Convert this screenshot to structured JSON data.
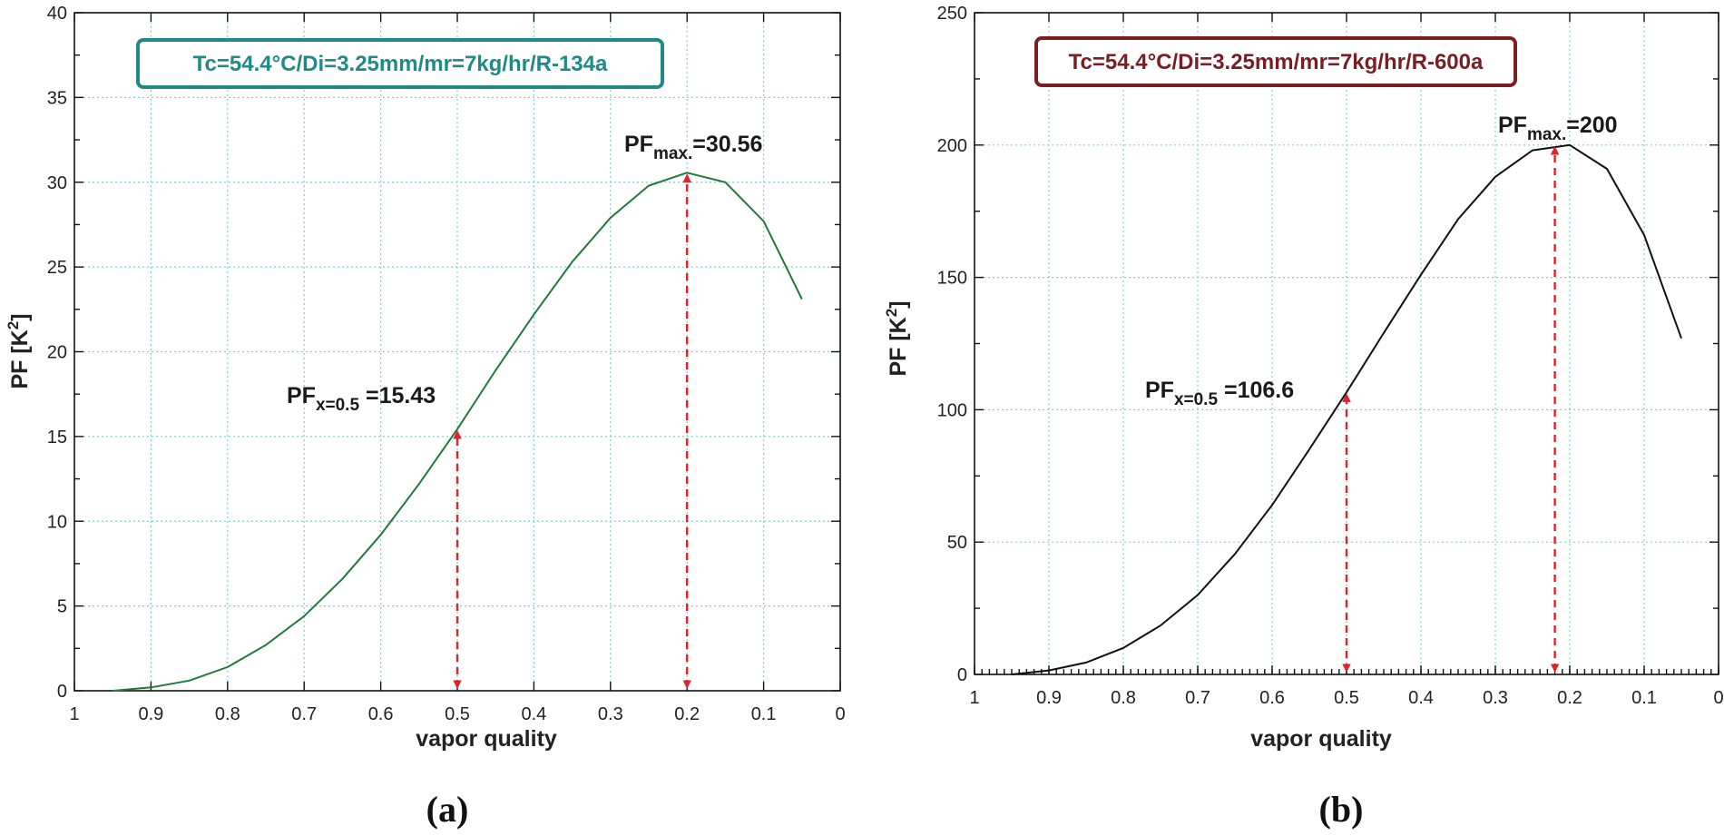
{
  "chart_data": [
    {
      "type": "line",
      "panel_label": "(a)",
      "title_box": "Tc=54.4°C/Di=3.25mm/mr=7kg/hr/R-134a",
      "title_color": "#1f8a86",
      "line_color": "#1e7b3a",
      "xlabel": "vapor quality",
      "ylabel": "PF  [K",
      "ylabel_sup": "2",
      "ylabel_close": "]",
      "xlim": [
        1,
        0
      ],
      "ylim": [
        0,
        40
      ],
      "xticks": [
        1,
        0.9,
        0.8,
        0.7,
        0.6,
        0.5,
        0.4,
        0.3,
        0.2,
        0.1,
        0
      ],
      "xtick_labels": [
        "1",
        "0.9",
        "0.8",
        "0.7",
        "0.6",
        "0.5",
        "0.4",
        "0.3",
        "0.2",
        "0.1",
        "0"
      ],
      "yticks": [
        0,
        5,
        10,
        15,
        20,
        25,
        30,
        35,
        40
      ],
      "ytick_labels": [
        "0",
        "5",
        "10",
        "15",
        "20",
        "25",
        "30",
        "35",
        "40"
      ],
      "minor_x_ticks": false,
      "grid": true,
      "series": [
        {
          "name": "R-134a",
          "x": [
            0.95,
            0.9,
            0.85,
            0.8,
            0.75,
            0.7,
            0.65,
            0.6,
            0.55,
            0.5,
            0.45,
            0.4,
            0.35,
            0.3,
            0.25,
            0.2,
            0.15,
            0.1,
            0.05
          ],
          "values": [
            0,
            0.2,
            0.6,
            1.4,
            2.7,
            4.4,
            6.6,
            9.2,
            12.2,
            15.43,
            18.9,
            22.2,
            25.3,
            27.9,
            29.8,
            30.56,
            30.0,
            27.7,
            23.1
          ]
        }
      ],
      "annotations": [
        {
          "id": "pf-half",
          "prefix": "PF",
          "sub": "x=0.5",
          "suffix": " =15.43",
          "x": 0.5,
          "y": 15.43
        },
        {
          "id": "pf-max",
          "prefix": "PF",
          "sub": "max.",
          "suffix": "=30.56",
          "x": 0.2,
          "y": 30.56
        }
      ]
    },
    {
      "type": "line",
      "panel_label": "(b)",
      "title_box": "Tc=54.4°C/Di=3.25mm/mr=7kg/hr/R-600a",
      "title_color": "#7a1e24",
      "line_color": "#111111",
      "xlabel": "vapor quality",
      "ylabel": "PF  [K",
      "ylabel_sup": "2",
      "ylabel_close": "]",
      "xlim": [
        1,
        0
      ],
      "ylim": [
        0,
        250
      ],
      "xticks": [
        1,
        0.9,
        0.8,
        0.7,
        0.6,
        0.5,
        0.4,
        0.3,
        0.2,
        0.1,
        0
      ],
      "xtick_labels": [
        "1",
        "0.9",
        "0.8",
        "0.7",
        "0.6",
        "0.5",
        "0.4",
        "0.3",
        "0.2",
        "0.1",
        "0"
      ],
      "yticks": [
        0,
        50,
        100,
        150,
        200,
        250
      ],
      "ytick_labels": [
        "0",
        "50",
        "100",
        "150",
        "200",
        "250"
      ],
      "minor_x_ticks": true,
      "grid": true,
      "series": [
        {
          "name": "R-600a",
          "x": [
            0.95,
            0.9,
            0.85,
            0.8,
            0.75,
            0.7,
            0.65,
            0.6,
            0.55,
            0.5,
            0.45,
            0.4,
            0.35,
            0.3,
            0.25,
            0.2,
            0.15,
            0.1,
            0.05
          ],
          "values": [
            0,
            1.5,
            4.5,
            10,
            18.5,
            30,
            45.5,
            64,
            85,
            106.6,
            129,
            151,
            172,
            188,
            198,
            200,
            191,
            166,
            127
          ]
        }
      ],
      "annotations": [
        {
          "id": "pf-half",
          "prefix": "PF",
          "sub": "x=0.5",
          "suffix": " =106.6",
          "x": 0.5,
          "y": 106.6
        },
        {
          "id": "pf-max",
          "prefix": "PF",
          "sub": "max.",
          "suffix": "=200",
          "x": 0.22,
          "y": 200
        }
      ]
    }
  ]
}
